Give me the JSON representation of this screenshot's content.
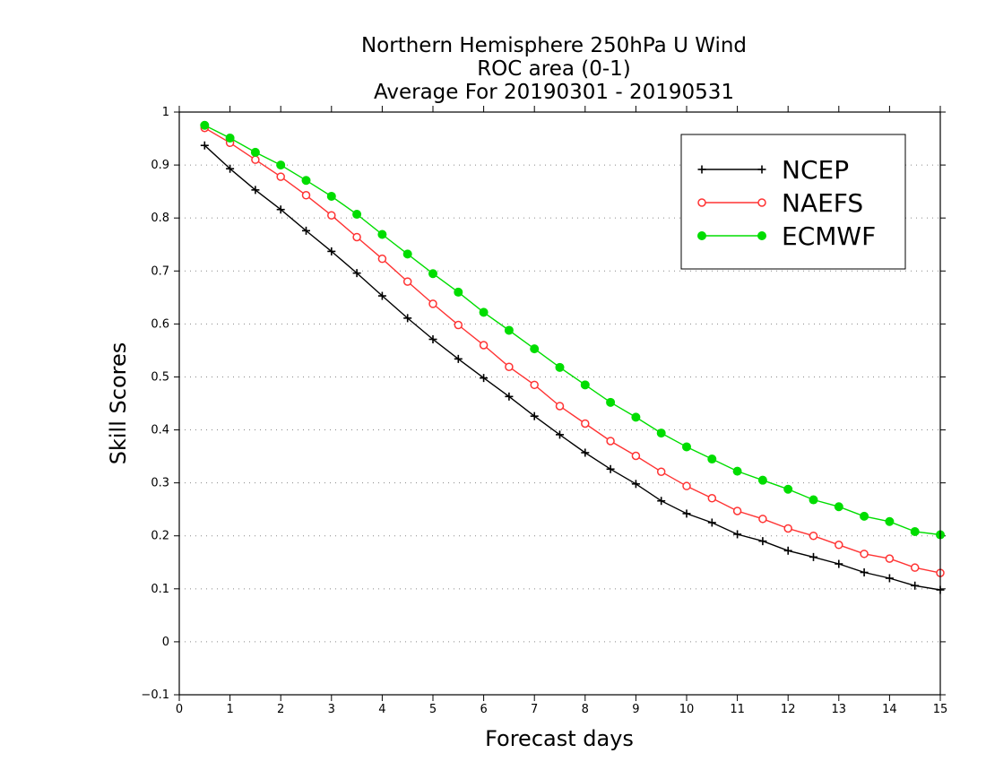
{
  "chart_data": {
    "type": "line",
    "title_lines": [
      "Northern Hemisphere 250hPa U Wind",
      "ROC area (0-1)",
      "Average For 20190301 - 20190531"
    ],
    "xlabel": "Forecast days",
    "ylabel": "Skill Scores",
    "xlim": [
      0,
      15
    ],
    "ylim": [
      -0.1,
      1
    ],
    "x_ticks": [
      "0",
      "1",
      "2",
      "3",
      "4",
      "5",
      "6",
      "7",
      "8",
      "9",
      "10",
      "11",
      "12",
      "13",
      "14",
      "15"
    ],
    "y_ticks": [
      "−0.1",
      "0",
      "0.1",
      "0.2",
      "0.3",
      "0.4",
      "0.5",
      "0.6",
      "0.7",
      "0.8",
      "0.9",
      "1"
    ],
    "y_tick_values": [
      -0.1,
      0,
      0.1,
      0.2,
      0.3,
      0.4,
      0.5,
      0.6,
      0.7,
      0.8,
      0.9,
      1
    ],
    "grid": "horizontal dotted",
    "legend_position": "top-right",
    "x": [
      0.5,
      1,
      1.5,
      2,
      2.5,
      3,
      3.5,
      4,
      4.5,
      5,
      5.5,
      6,
      6.5,
      7,
      7.5,
      8,
      8.5,
      9,
      9.5,
      10,
      10.5,
      11,
      11.5,
      12,
      12.5,
      13,
      13.5,
      14,
      14.5,
      15
    ],
    "series": [
      {
        "name": "NCEP",
        "color": "#000000",
        "marker": "plus",
        "values": [
          0.937,
          0.893,
          0.853,
          0.816,
          0.776,
          0.737,
          0.696,
          0.653,
          0.611,
          0.571,
          0.534,
          0.498,
          0.463,
          0.426,
          0.391,
          0.357,
          0.326,
          0.298,
          0.266,
          0.242,
          0.225,
          0.203,
          0.19,
          0.172,
          0.16,
          0.147,
          0.131,
          0.12,
          0.106,
          0.098
        ]
      },
      {
        "name": "NAEFS",
        "color": "#ff3333",
        "marker": "open-circle",
        "values": [
          0.97,
          0.942,
          0.91,
          0.878,
          0.843,
          0.805,
          0.764,
          0.723,
          0.68,
          0.638,
          0.598,
          0.56,
          0.519,
          0.485,
          0.445,
          0.412,
          0.379,
          0.351,
          0.321,
          0.294,
          0.271,
          0.247,
          0.232,
          0.214,
          0.2,
          0.183,
          0.166,
          0.157,
          0.14,
          0.13
        ]
      },
      {
        "name": "ECMWF",
        "color": "#00dd00",
        "marker": "filled-circle",
        "values": [
          0.975,
          0.951,
          0.924,
          0.9,
          0.871,
          0.841,
          0.807,
          0.769,
          0.732,
          0.695,
          0.66,
          0.622,
          0.588,
          0.553,
          0.518,
          0.485,
          0.452,
          0.424,
          0.394,
          0.368,
          0.345,
          0.322,
          0.305,
          0.288,
          0.268,
          0.255,
          0.237,
          0.227,
          0.208,
          0.202
        ]
      }
    ]
  }
}
